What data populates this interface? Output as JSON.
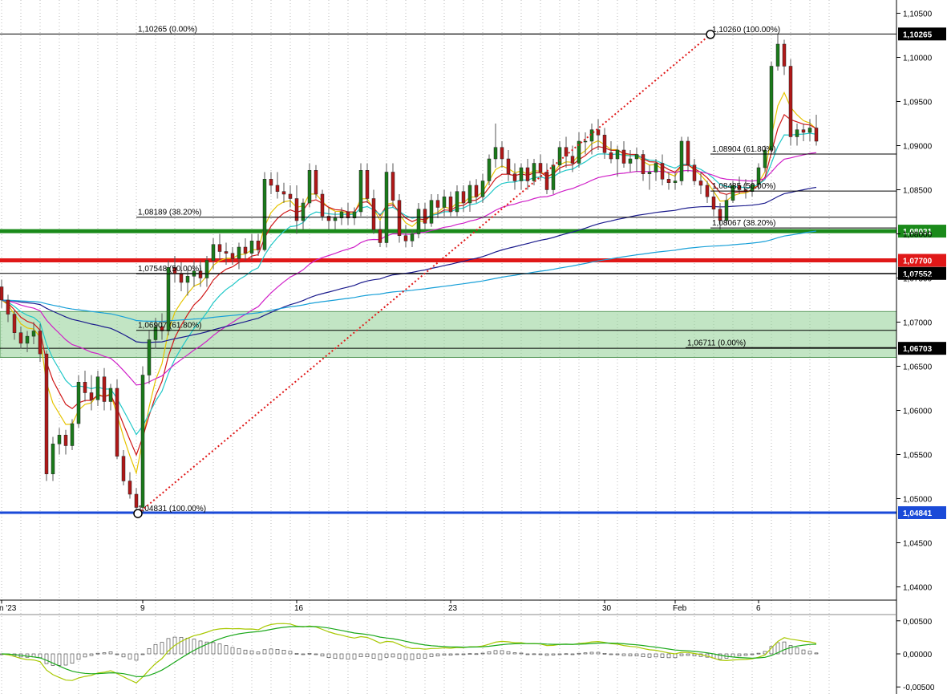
{
  "chart_data": {
    "type": "candlestick",
    "title": "",
    "price_axis": {
      "ylim": [
        1.0385,
        1.1065
      ],
      "ticks": [
        "1,10500",
        "1,10000",
        "1,09500",
        "1,09000",
        "1,08500",
        "1,08000",
        "1,07500",
        "1,07000",
        "1,06500",
        "1,06000",
        "1,05500",
        "1,05000",
        "1,04500",
        "1,04000"
      ],
      "tick_values": [
        1.105,
        1.1,
        1.095,
        1.09,
        1.085,
        1.08,
        1.075,
        1.07,
        1.065,
        1.06,
        1.055,
        1.05,
        1.045,
        1.04
      ]
    },
    "date_axis": {
      "labels": [
        "n '23",
        "9",
        "16",
        "23",
        "30",
        "Feb",
        "6"
      ],
      "label_bar_index": [
        0,
        22,
        46,
        70,
        94,
        105,
        118
      ],
      "bar_count": 131
    },
    "candles": [
      [
        1.074,
        1.0748,
        1.0716,
        1.0725
      ],
      [
        1.0725,
        1.0731,
        1.07,
        1.0709
      ],
      [
        1.0709,
        1.0714,
        1.068,
        1.0688
      ],
      [
        1.0688,
        1.0695,
        1.067,
        1.0676
      ],
      [
        1.0676,
        1.069,
        1.0666,
        1.0684
      ],
      [
        1.0684,
        1.07,
        1.0675,
        1.069
      ],
      [
        1.069,
        1.0698,
        1.0655,
        1.0664
      ],
      [
        1.0664,
        1.0668,
        1.052,
        1.0528
      ],
      [
        1.0528,
        1.057,
        1.052,
        1.0562
      ],
      [
        1.0562,
        1.058,
        1.055,
        1.0572
      ],
      [
        1.0572,
        1.0578,
        1.055,
        1.056
      ],
      [
        1.056,
        1.059,
        1.0555,
        1.0585
      ],
      [
        1.0585,
        1.064,
        1.058,
        1.0632
      ],
      [
        1.0632,
        1.0645,
        1.061,
        1.062
      ],
      [
        1.062,
        1.064,
        1.06,
        1.0612
      ],
      [
        1.0612,
        1.0645,
        1.0605,
        1.0638
      ],
      [
        1.0638,
        1.0648,
        1.06,
        1.061
      ],
      [
        1.061,
        1.063,
        1.06,
        1.0625
      ],
      [
        1.0625,
        1.0635,
        1.0545,
        1.0548
      ],
      [
        1.0548,
        1.0555,
        1.0515,
        1.052
      ],
      [
        1.052,
        1.053,
        1.05,
        1.0505
      ],
      [
        1.0505,
        1.0512,
        1.0483,
        1.049
      ],
      [
        1.049,
        1.065,
        1.0485,
        1.064
      ],
      [
        1.064,
        1.069,
        1.063,
        1.068
      ],
      [
        1.068,
        1.0705,
        1.067,
        1.0695
      ],
      [
        1.0695,
        1.071,
        1.068,
        1.069
      ],
      [
        1.069,
        1.077,
        1.0685,
        1.0762
      ],
      [
        1.0762,
        1.0775,
        1.0745,
        1.0755
      ],
      [
        1.0755,
        1.0768,
        1.0735,
        1.0745
      ],
      [
        1.0745,
        1.076,
        1.073,
        1.0752
      ],
      [
        1.0752,
        1.077,
        1.074,
        1.0758
      ],
      [
        1.0758,
        1.077,
        1.074,
        1.075
      ],
      [
        1.075,
        1.0775,
        1.074,
        1.077
      ],
      [
        1.077,
        1.0795,
        1.076,
        1.0788
      ],
      [
        1.0788,
        1.08,
        1.077,
        1.078
      ],
      [
        1.078,
        1.079,
        1.0765,
        1.0778
      ],
      [
        1.0778,
        1.0785,
        1.0765,
        1.0772
      ],
      [
        1.0772,
        1.079,
        1.076,
        1.0785
      ],
      [
        1.0785,
        1.0795,
        1.077,
        1.0778
      ],
      [
        1.0778,
        1.08,
        1.077,
        1.0792
      ],
      [
        1.0792,
        1.08,
        1.0775,
        1.0782
      ],
      [
        1.0782,
        1.087,
        1.078,
        1.0862
      ],
      [
        1.0862,
        1.087,
        1.0845,
        1.0855
      ],
      [
        1.0855,
        1.087,
        1.084,
        1.0848
      ],
      [
        1.0848,
        1.0858,
        1.0835,
        1.0845
      ],
      [
        1.0845,
        1.0855,
        1.083,
        1.084
      ],
      [
        1.084,
        1.0855,
        1.08,
        1.0815
      ],
      [
        1.0815,
        1.084,
        1.0805,
        1.0835
      ],
      [
        1.0835,
        1.088,
        1.083,
        1.0872
      ],
      [
        1.0872,
        1.0878,
        1.084,
        1.0845
      ],
      [
        1.0845,
        1.085,
        1.0815,
        1.082
      ],
      [
        1.082,
        1.083,
        1.0805,
        1.0815
      ],
      [
        1.0815,
        1.0825,
        1.0805,
        1.0818
      ],
      [
        1.0818,
        1.083,
        1.081,
        1.0825
      ],
      [
        1.0825,
        1.0835,
        1.081,
        1.0818
      ],
      [
        1.0818,
        1.083,
        1.081,
        1.0825
      ],
      [
        1.0825,
        1.088,
        1.082,
        1.0872
      ],
      [
        1.0872,
        1.088,
        1.0835,
        1.084
      ],
      [
        1.084,
        1.085,
        1.08,
        1.0805
      ],
      [
        1.0805,
        1.0815,
        1.0785,
        1.079
      ],
      [
        1.079,
        1.088,
        1.0785,
        1.087
      ],
      [
        1.087,
        1.088,
        1.083,
        1.0838
      ],
      [
        1.0838,
        1.0845,
        1.079,
        1.0798
      ],
      [
        1.0798,
        1.081,
        1.0785,
        1.0792
      ],
      [
        1.0792,
        1.0805,
        1.0785,
        1.08
      ],
      [
        1.08,
        1.0835,
        1.0795,
        1.0828
      ],
      [
        1.0828,
        1.0835,
        1.0805,
        1.0812
      ],
      [
        1.0812,
        1.0845,
        1.0808,
        1.0838
      ],
      [
        1.0838,
        1.0845,
        1.0818,
        1.083
      ],
      [
        1.083,
        1.085,
        1.082,
        1.0842
      ],
      [
        1.0842,
        1.0848,
        1.082,
        1.0825
      ],
      [
        1.0825,
        1.0855,
        1.082,
        1.0848
      ],
      [
        1.0848,
        1.0855,
        1.0825,
        1.0835
      ],
      [
        1.0835,
        1.086,
        1.0825,
        1.0855
      ],
      [
        1.0855,
        1.0862,
        1.0835,
        1.0842
      ],
      [
        1.0842,
        1.0868,
        1.0835,
        1.086
      ],
      [
        1.086,
        1.089,
        1.0855,
        1.0885
      ],
      [
        1.0885,
        1.0925,
        1.0875,
        1.0898
      ],
      [
        1.0898,
        1.0905,
        1.0875,
        1.0885
      ],
      [
        1.0885,
        1.0895,
        1.086,
        1.0868
      ],
      [
        1.0868,
        1.088,
        1.085,
        1.086
      ],
      [
        1.086,
        1.088,
        1.085,
        1.0875
      ],
      [
        1.0875,
        1.0885,
        1.085,
        1.086
      ],
      [
        1.086,
        1.0885,
        1.0855,
        1.088
      ],
      [
        1.088,
        1.089,
        1.086,
        1.087
      ],
      [
        1.087,
        1.088,
        1.0845,
        1.085
      ],
      [
        1.085,
        1.0885,
        1.0845,
        1.0878
      ],
      [
        1.0878,
        1.0905,
        1.087,
        1.0898
      ],
      [
        1.0898,
        1.091,
        1.0875,
        1.0888
      ],
      [
        1.0888,
        1.09,
        1.087,
        1.088
      ],
      [
        1.088,
        1.0915,
        1.0875,
        1.0905
      ],
      [
        1.0905,
        1.0915,
        1.089,
        1.0905
      ],
      [
        1.0905,
        1.0925,
        1.089,
        1.0918
      ],
      [
        1.0918,
        1.093,
        1.0895,
        1.0912
      ],
      [
        1.0912,
        1.092,
        1.0885,
        1.0892
      ],
      [
        1.0892,
        1.0905,
        1.088,
        1.0885
      ],
      [
        1.0885,
        1.09,
        1.0865,
        1.0895
      ],
      [
        1.0895,
        1.0905,
        1.0875,
        1.088
      ],
      [
        1.088,
        1.0895,
        1.087,
        1.0885
      ],
      [
        1.0885,
        1.0898,
        1.087,
        1.089
      ],
      [
        1.089,
        1.0895,
        1.086,
        1.0868
      ],
      [
        1.0868,
        1.0878,
        1.085,
        1.087
      ],
      [
        1.087,
        1.0885,
        1.086,
        1.088
      ],
      [
        1.088,
        1.089,
        1.0855,
        1.0862
      ],
      [
        1.0862,
        1.087,
        1.085,
        1.0858
      ],
      [
        1.0858,
        1.087,
        1.085,
        1.086
      ],
      [
        1.086,
        1.091,
        1.0855,
        1.0905
      ],
      [
        1.0905,
        1.091,
        1.087,
        1.0878
      ],
      [
        1.0878,
        1.0885,
        1.0855,
        1.086
      ],
      [
        1.086,
        1.087,
        1.0845,
        1.0855
      ],
      [
        1.0855,
        1.086,
        1.0835,
        1.0842
      ],
      [
        1.0842,
        1.085,
        1.082,
        1.0828
      ],
      [
        1.0828,
        1.0835,
        1.0805,
        1.0815
      ],
      [
        1.0815,
        1.0845,
        1.081,
        1.0838
      ],
      [
        1.0838,
        1.086,
        1.0835,
        1.0855
      ],
      [
        1.0855,
        1.0865,
        1.0845,
        1.085
      ],
      [
        1.085,
        1.0862,
        1.084,
        1.0848
      ],
      [
        1.0848,
        1.0862,
        1.0842,
        1.0856
      ],
      [
        1.0856,
        1.088,
        1.085,
        1.0875
      ],
      [
        1.0875,
        1.09,
        1.087,
        1.0895
      ],
      [
        1.0895,
        1.0995,
        1.089,
        1.099
      ],
      [
        1.099,
        1.1026,
        1.0985,
        1.1015
      ],
      [
        1.1015,
        1.102,
        1.098,
        1.099
      ],
      [
        1.099,
        1.0998,
        1.09,
        1.091
      ],
      [
        1.091,
        1.0925,
        1.09,
        1.0918
      ],
      [
        1.0918,
        1.0925,
        1.0905,
        1.0915
      ],
      [
        1.0915,
        1.093,
        1.0905,
        1.092
      ],
      [
        1.092,
        1.0935,
        1.09,
        1.0905
      ]
    ],
    "moving_averages": [
      {
        "color": "#e6c400"
      },
      {
        "color": "#d01818"
      },
      {
        "color": "#20c8c8"
      },
      {
        "color": "#d020c8"
      },
      {
        "color": "#1a1a8c"
      },
      {
        "color": "#18a0d8"
      }
    ],
    "fibonacci_levels": [
      {
        "label": "1,10265 (0.00%)",
        "value": 1.10265
      },
      {
        "label": "1,10260 (100.00%)",
        "value": 1.1026
      },
      {
        "label": "1,08189 (38.20%)",
        "value": 1.08189
      },
      {
        "label": "1,07548 (50.00%)",
        "value": 1.07548
      },
      {
        "label": "1,06907 (61.80%)",
        "value": 1.06907
      },
      {
        "label": "1,04831 (100.00%)",
        "value": 1.04831
      },
      {
        "label": "1,08904 (61.80%)",
        "value": 1.08904
      },
      {
        "label": "1,08485 (50.00%)",
        "value": 1.08485
      },
      {
        "label": "1,08067 (38.20%)",
        "value": 1.08067
      },
      {
        "label": "1,06711 (0.00%)",
        "value": 1.06711
      }
    ],
    "horizontal_lines": [
      {
        "label": "1,10265",
        "value": 1.10265,
        "color": "#000000"
      },
      {
        "label": "1,08031",
        "value": 1.08031,
        "color": "#1a8a1a"
      },
      {
        "label": "1,07700",
        "value": 1.077,
        "color": "#e01818"
      },
      {
        "label": "1,07552",
        "value": 1.07552,
        "color": "#000000"
      },
      {
        "label": "1,06703",
        "value": 1.06703,
        "color": "#000000"
      },
      {
        "label": "1,04841",
        "value": 1.04841,
        "color": "#1a4ad8"
      }
    ],
    "zone": {
      "from": 1.066,
      "to": 1.0712,
      "color": "#8fcf94"
    },
    "oscillator": {
      "ticks": [
        "0,00500",
        "0,00000",
        "-0,00500"
      ],
      "tick_values": [
        0.005,
        0,
        -0.005
      ],
      "ylim": [
        -0.0057,
        0.0057
      ]
    }
  }
}
